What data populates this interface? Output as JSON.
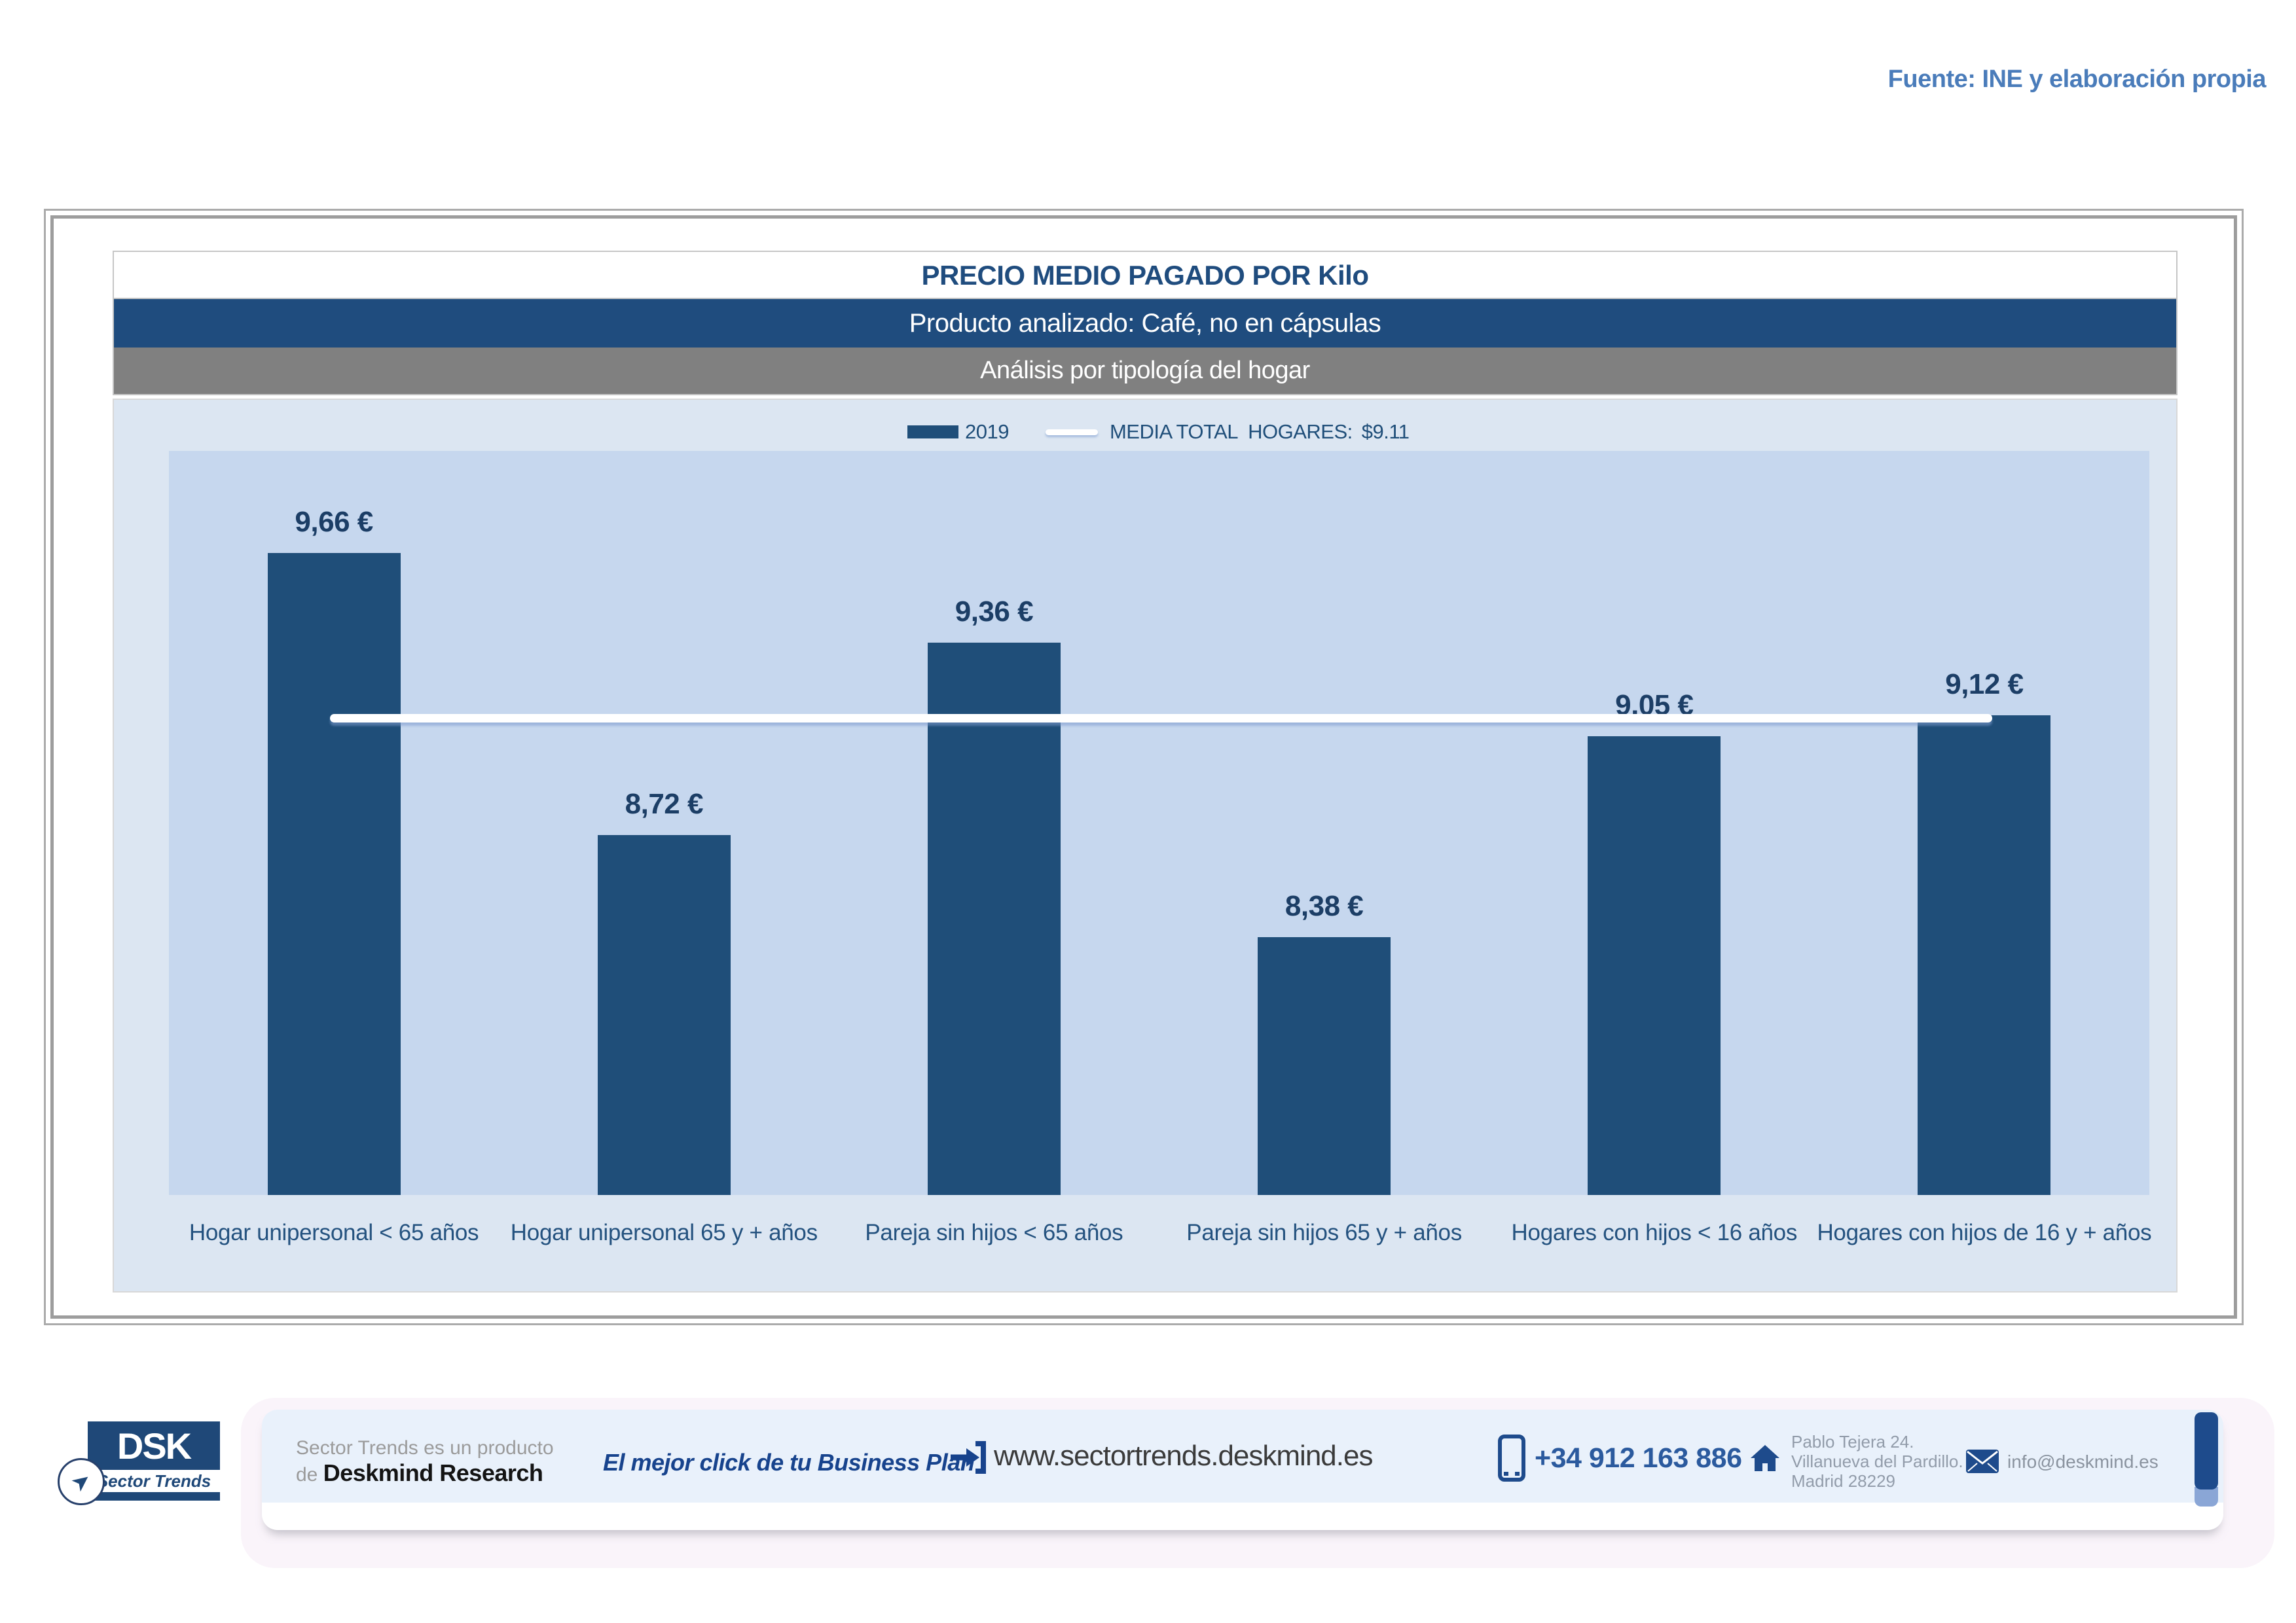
{
  "page": {
    "source_note": "Fuente: INE y elaboración propia"
  },
  "header": {
    "title": "PRECIO MEDIO PAGADO POR Kilo",
    "product_band": "Producto analizado: Café, no en cápsulas",
    "analysis_band": "Análisis por tipología del hogar"
  },
  "legend": {
    "series_label": "2019",
    "media_label": "MEDIA TOTAL  HOGARES:",
    "media_value": "$9.11"
  },
  "chart_data": {
    "type": "bar",
    "title": "PRECIO MEDIO PAGADO POR Kilo",
    "subtitle": "Producto analizado: Café, no en cápsulas — Análisis por tipología del hogar",
    "series_name": "2019",
    "categories": [
      "Hogar unipersonal < 65 años",
      "Hogar unipersonal 65 y + años",
      "Pareja sin hijos < 65 años",
      "Pareja sin hijos 65 y + años",
      "Hogares con hijos < 16 años",
      "Hogares con hijos de 16 y + años"
    ],
    "values": [
      9.66,
      8.72,
      9.36,
      8.38,
      9.05,
      9.12
    ],
    "value_labels": [
      "9,66 €",
      "8,72 €",
      "9,36 €",
      "8,38 €",
      "9,05 €",
      "9,12 €"
    ],
    "media_total": 9.11,
    "media_total_label": "$9.11",
    "unit": "€/kg",
    "xlabel": "",
    "ylabel": "",
    "ylim": [
      7.52,
      10.0
    ],
    "grid": false,
    "legend_position": "top-center",
    "bar_color": "#1F4E79",
    "plot_bg": "#C6D7EE",
    "chart_bg": "#DCE6F2",
    "media_line_color": "#FFFFFF"
  },
  "footer": {
    "logo": {
      "acronym": "DSK",
      "subtitle": "Sector Trends",
      "cursor_icon": "cursor-arrow-icon"
    },
    "product_line_1": "Sector Trends es un producto",
    "product_line_2_prefix": "de ",
    "brand": "Deskmind Research",
    "tagline": "El mejor click de tu Business Plan",
    "website": "www.sectortrends.deskmind.es",
    "phone": "+34 912 163 886",
    "address_line_1": "Pablo Tejera 24.",
    "address_line_2": "Villanueva del Pardillo.",
    "address_line_3": "Madrid 28229",
    "email": "info@deskmind.es"
  },
  "colors": {
    "bar": "#1F4E79",
    "header_band": "#1F4C7E",
    "gray_band": "#808080",
    "accent_blue": "#17438D",
    "source_note": "#4A7CBA"
  }
}
